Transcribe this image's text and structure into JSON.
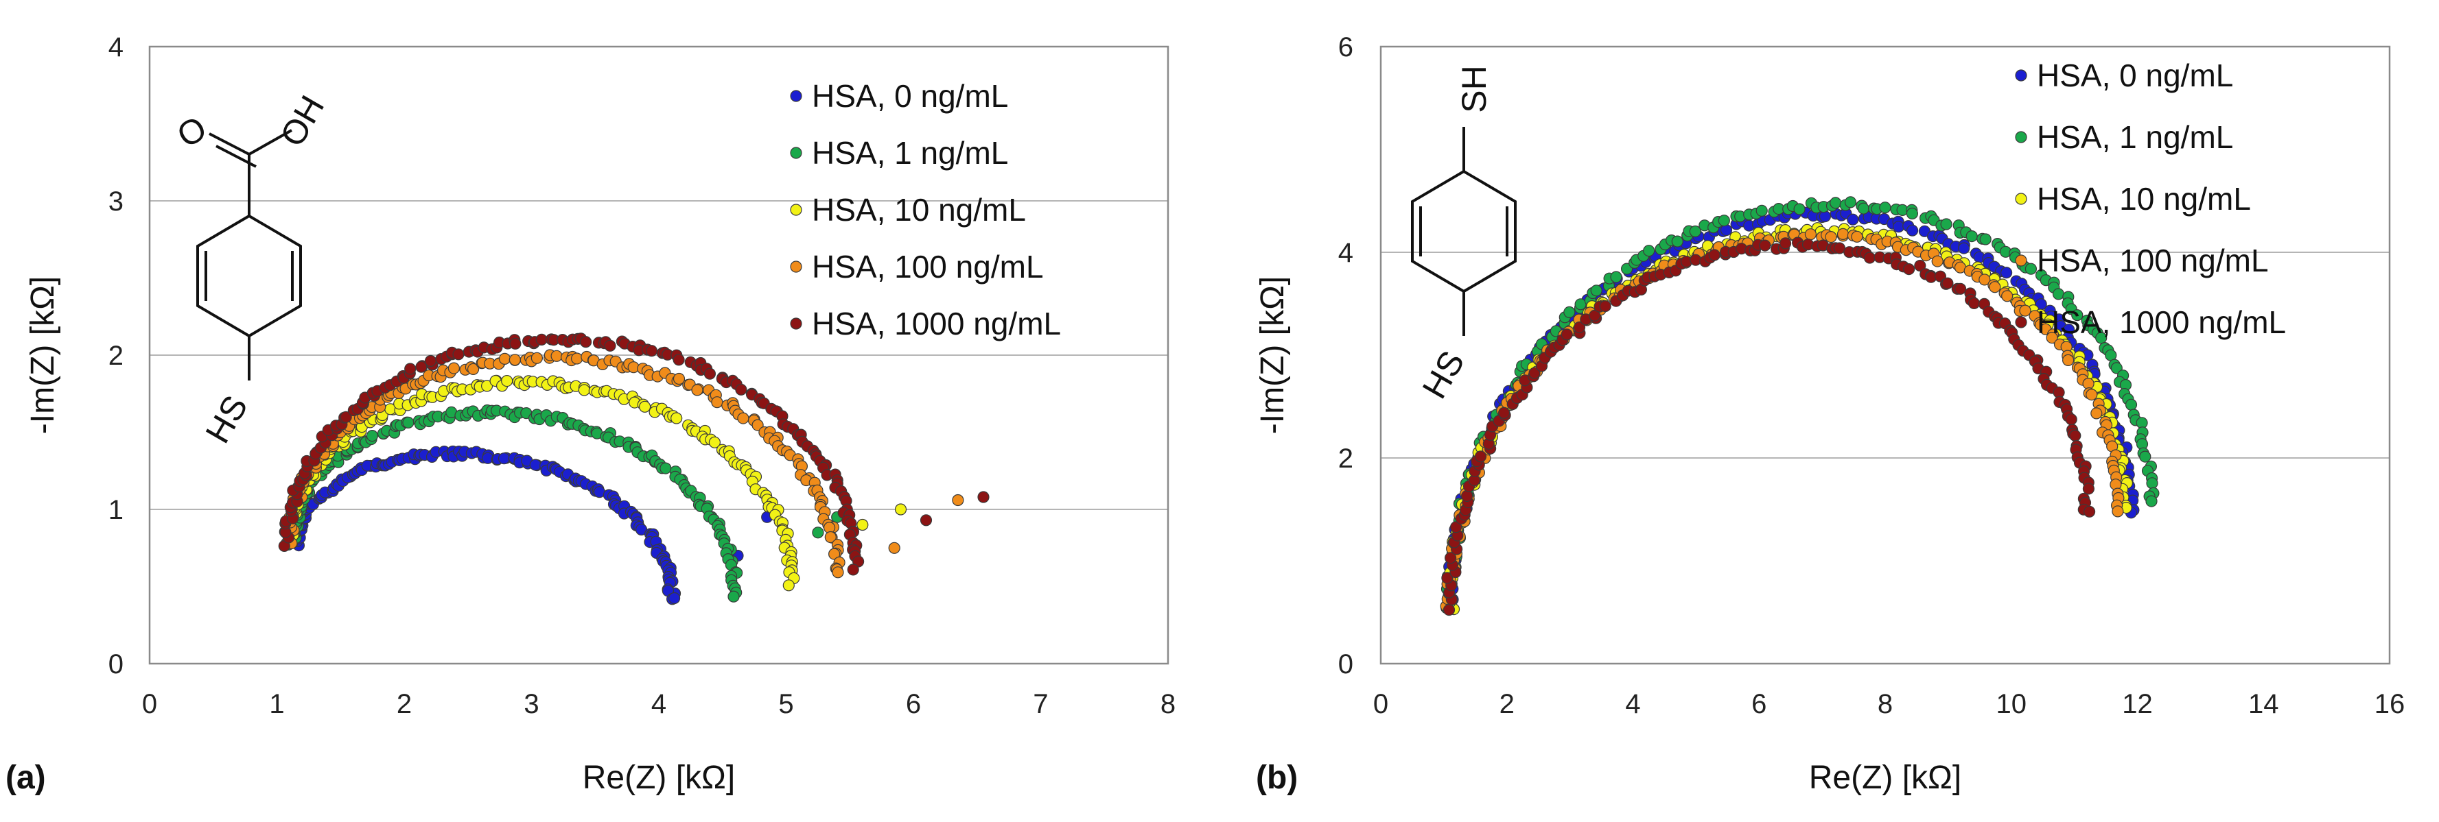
{
  "chart_data": [
    {
      "type": "scatter",
      "panel_label": "(a)",
      "xlabel": "Re(Z) [kΩ]",
      "ylabel": "-Im(Z) [kΩ]",
      "xlim": [
        0,
        8
      ],
      "ylim": [
        0,
        4
      ],
      "xticks": [
        "0",
        "1",
        "2",
        "3",
        "4",
        "5",
        "6",
        "7",
        "8"
      ],
      "yticks": [
        "0",
        "1",
        "2",
        "3",
        "4"
      ],
      "grid": "horizontal",
      "legend_position": "top-right",
      "molecule": {
        "labels": [
          "O",
          "OH",
          "HS"
        ]
      },
      "series": [
        {
          "name": "HSA, 0 ng/mL",
          "color": "#1b1fd0",
          "x0": 1.15,
          "x1": 4.1,
          "peak": 1.35,
          "tail_y": 0.42,
          "outliers": [
            [
              4.62,
              0.7
            ],
            [
              4.85,
              0.95
            ]
          ]
        },
        {
          "name": "HSA, 1 ng/mL",
          "color": "#1aa84a",
          "x0": 1.12,
          "x1": 4.6,
          "peak": 1.62,
          "tail_y": 0.45,
          "outliers": [
            [
              5.4,
              0.95
            ],
            [
              5.25,
              0.85
            ]
          ]
        },
        {
          "name": "HSA, 10 ng/mL",
          "color": "#f2f215",
          "x0": 1.1,
          "x1": 5.05,
          "peak": 1.82,
          "tail_y": 0.52,
          "outliers": [
            [
              5.9,
              1.0
            ],
            [
              5.6,
              0.9
            ]
          ]
        },
        {
          "name": "HSA, 100 ng/mL",
          "color": "#f08c1a",
          "x0": 1.1,
          "x1": 5.4,
          "peak": 1.98,
          "tail_y": 0.58,
          "outliers": [
            [
              6.35,
              1.06
            ],
            [
              5.85,
              0.75
            ]
          ]
        },
        {
          "name": "HSA, 1000 ng/mL",
          "color": "#8c1414",
          "x0": 1.08,
          "x1": 5.55,
          "peak": 2.1,
          "tail_y": 0.62,
          "outliers": [
            [
              6.55,
              1.08
            ],
            [
              6.1,
              0.93
            ]
          ]
        }
      ]
    },
    {
      "type": "scatter",
      "panel_label": "(b)",
      "xlabel": "Re(Z) [kΩ]",
      "ylabel": "-Im(Z) [kΩ]",
      "xlim": [
        0,
        16
      ],
      "ylim": [
        0,
        6
      ],
      "xticks": [
        "0",
        "2",
        "4",
        "6",
        "8",
        "10",
        "12",
        "14",
        "16"
      ],
      "yticks": [
        "0",
        "2",
        "4",
        "6"
      ],
      "grid": "horizontal",
      "legend_position": "top-right",
      "molecule": {
        "labels": [
          "SH",
          "HS"
        ]
      },
      "series": [
        {
          "name": "HSA, 0 ng/mL",
          "color": "#1b1fd0",
          "x0": 1.1,
          "x1": 11.9,
          "peak": 4.35,
          "tail_y": 1.45
        },
        {
          "name": "HSA, 1 ng/mL",
          "color": "#1aa84a",
          "x0": 1.1,
          "x1": 12.2,
          "peak": 4.45,
          "tail_y": 1.55
        },
        {
          "name": "HSA, 10 ng/mL",
          "color": "#f2f215",
          "x0": 1.1,
          "x1": 11.8,
          "peak": 4.2,
          "tail_y": 1.5
        },
        {
          "name": "HSA, 100 ng/mL",
          "color": "#f08c1a",
          "x0": 1.1,
          "x1": 11.7,
          "peak": 4.15,
          "tail_y": 1.5
        },
        {
          "name": "HSA, 1000 ng/mL",
          "color": "#8c1414",
          "x0": 1.1,
          "x1": 11.2,
          "peak": 4.05,
          "tail_y": 1.45
        }
      ]
    }
  ]
}
